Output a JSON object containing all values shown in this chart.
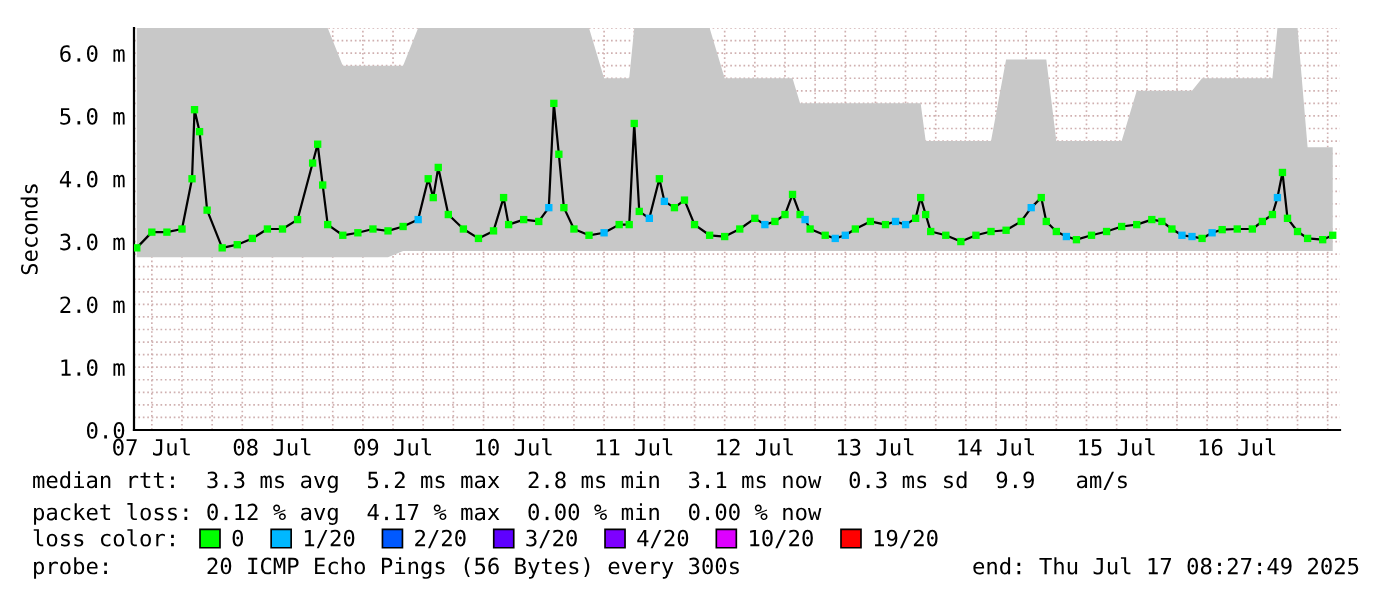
{
  "chart_data": {
    "type": "line",
    "ylabel": "Seconds",
    "legend_title": "loss color:",
    "legend": "bottom",
    "grid": true,
    "xlim": [
      "2025-07-07T08:27",
      "2025-07-17T08:27"
    ],
    "ylim": [
      0,
      6.4
    ],
    "x": [
      "2025-07-07T09:00",
      "2025-07-07T12:00",
      "2025-07-07T15:00",
      "2025-07-07T18:00",
      "2025-07-07T20:00",
      "2025-07-07T20:30",
      "2025-07-07T21:30",
      "2025-07-07T23:00",
      "2025-07-08T02:00",
      "2025-07-08T05:00",
      "2025-07-08T08:00",
      "2025-07-08T11:00",
      "2025-07-08T14:00",
      "2025-07-08T17:00",
      "2025-07-08T20:00",
      "2025-07-08T21:00",
      "2025-07-08T22:00",
      "2025-07-08T23:00",
      "2025-07-09T02:00",
      "2025-07-09T05:00",
      "2025-07-09T08:00",
      "2025-07-09T11:00",
      "2025-07-09T14:00",
      "2025-07-09T17:00",
      "2025-07-09T19:00",
      "2025-07-09T20:00",
      "2025-07-09T21:00",
      "2025-07-09T23:00",
      "2025-07-10T02:00",
      "2025-07-10T05:00",
      "2025-07-10T08:00",
      "2025-07-10T10:00",
      "2025-07-10T11:00",
      "2025-07-10T14:00",
      "2025-07-10T17:00",
      "2025-07-10T19:00",
      "2025-07-10T20:00",
      "2025-07-10T21:00",
      "2025-07-10T22:00",
      "2025-07-11T00:00",
      "2025-07-11T03:00",
      "2025-07-11T06:00",
      "2025-07-11T09:00",
      "2025-07-11T11:00",
      "2025-07-11T12:00",
      "2025-07-11T13:00",
      "2025-07-11T15:00",
      "2025-07-11T17:00",
      "2025-07-11T18:00",
      "2025-07-11T20:00",
      "2025-07-11T22:00",
      "2025-07-12T00:00",
      "2025-07-12T03:00",
      "2025-07-12T06:00",
      "2025-07-12T09:00",
      "2025-07-12T12:00",
      "2025-07-12T14:00",
      "2025-07-12T16:00",
      "2025-07-12T18:00",
      "2025-07-12T19:30",
      "2025-07-12T21:00",
      "2025-07-12T22:00",
      "2025-07-12T23:00",
      "2025-07-13T02:00",
      "2025-07-13T04:00",
      "2025-07-13T06:00",
      "2025-07-13T08:00",
      "2025-07-13T11:00",
      "2025-07-13T14:00",
      "2025-07-13T16:00",
      "2025-07-13T18:00",
      "2025-07-13T20:00",
      "2025-07-13T21:00",
      "2025-07-13T22:00",
      "2025-07-13T23:00",
      "2025-07-14T02:00",
      "2025-07-14T05:00",
      "2025-07-14T08:00",
      "2025-07-14T11:00",
      "2025-07-14T14:00",
      "2025-07-14T17:00",
      "2025-07-14T19:00",
      "2025-07-14T21:00",
      "2025-07-14T22:00",
      "2025-07-15T00:00",
      "2025-07-15T02:00",
      "2025-07-15T04:00",
      "2025-07-15T07:00",
      "2025-07-15T10:00",
      "2025-07-15T13:00",
      "2025-07-15T16:00",
      "2025-07-15T19:00",
      "2025-07-15T21:00",
      "2025-07-15T23:00",
      "2025-07-16T01:00",
      "2025-07-16T03:00",
      "2025-07-16T05:00",
      "2025-07-16T07:00",
      "2025-07-16T09:00",
      "2025-07-16T12:00",
      "2025-07-16T15:00",
      "2025-07-16T17:00",
      "2025-07-16T19:00",
      "2025-07-16T20:00",
      "2025-07-16T21:00",
      "2025-07-16T22:00",
      "2025-07-17T00:00",
      "2025-07-17T02:00",
      "2025-07-17T05:00",
      "2025-07-17T07:00"
    ],
    "series": [
      {
        "color": "#000000",
        "marker": "none",
        "values": [
          2.9,
          3.15,
          3.15,
          3.2,
          4.0,
          5.1,
          4.75,
          3.5,
          2.9,
          2.95,
          3.05,
          3.2,
          3.2,
          3.35,
          4.25,
          4.55,
          3.9,
          3.27,
          3.1,
          3.14,
          3.2,
          3.17,
          3.24,
          3.35,
          4.0,
          3.7,
          4.18,
          3.43,
          3.2,
          3.05,
          3.17,
          3.7,
          3.27,
          3.35,
          3.32,
          3.54,
          5.2,
          4.39,
          3.54,
          3.2,
          3.1,
          3.14,
          3.27,
          3.27,
          4.88,
          3.48,
          3.37,
          4.0,
          3.64,
          3.54,
          3.66,
          3.27,
          3.1,
          3.08,
          3.2,
          3.37,
          3.27,
          3.32,
          3.43,
          3.75,
          3.43,
          3.35,
          3.2,
          3.1,
          3.05,
          3.1,
          3.2,
          3.32,
          3.27,
          3.32,
          3.27,
          3.37,
          3.7,
          3.43,
          3.16,
          3.1,
          3.0,
          3.1,
          3.16,
          3.18,
          3.32,
          3.54,
          3.7,
          3.32,
          3.16,
          3.08,
          3.03,
          3.1,
          3.16,
          3.24,
          3.27,
          3.35,
          3.32,
          3.2,
          3.1,
          3.08,
          3.05,
          3.14,
          3.19,
          3.2,
          3.2,
          3.32,
          3.43,
          3.7,
          4.1,
          3.37,
          3.16,
          3.05,
          3.03,
          3.1
        ],
        "lower": [
          2.75,
          2.75,
          2.75,
          2.75,
          2.75,
          2.75,
          2.75,
          2.75,
          2.75,
          2.75,
          2.75,
          2.75,
          2.75,
          2.75,
          2.75,
          2.75,
          2.75,
          2.75,
          2.75,
          2.75,
          2.75,
          2.75,
          2.85,
          2.85,
          2.85,
          2.85,
          2.85,
          2.85,
          2.85,
          2.85,
          2.85,
          2.85,
          2.85,
          2.85,
          2.85,
          2.85,
          2.85,
          2.85,
          2.85,
          2.85,
          2.85,
          2.85,
          2.85,
          2.85,
          2.85,
          2.85,
          2.85,
          2.85,
          2.85,
          2.85,
          2.85,
          2.85,
          2.85,
          2.85,
          2.85,
          2.85,
          2.85,
          2.85,
          2.85,
          2.85,
          2.85,
          2.85,
          2.85,
          2.85,
          2.85,
          2.85,
          2.85,
          2.85,
          2.85,
          2.85,
          2.85,
          2.85,
          2.85,
          2.85,
          2.85,
          2.85,
          2.85,
          2.85,
          2.85,
          2.85,
          2.85,
          2.85,
          2.85,
          2.85,
          2.85,
          2.85,
          2.85,
          2.85,
          2.85,
          2.85,
          2.85,
          2.85,
          2.85,
          2.85,
          2.85,
          2.85,
          2.85,
          2.85,
          2.85,
          2.85,
          2.85,
          2.85,
          2.85,
          2.85,
          2.85,
          2.85,
          2.85,
          2.85,
          2.85,
          2.85
        ],
        "upper": [
          6.4,
          6.4,
          6.4,
          6.4,
          6.4,
          6.4,
          6.4,
          6.4,
          6.4,
          6.4,
          6.4,
          6.4,
          6.4,
          6.4,
          6.4,
          6.4,
          6.4,
          6.4,
          5.8,
          5.8,
          5.8,
          5.8,
          5.8,
          6.4,
          6.4,
          6.4,
          6.4,
          6.4,
          6.4,
          6.4,
          6.4,
          6.4,
          6.4,
          6.4,
          6.4,
          6.4,
          6.4,
          6.4,
          6.4,
          6.4,
          6.4,
          5.6,
          5.6,
          5.6,
          6.4,
          6.4,
          6.4,
          6.4,
          6.4,
          6.4,
          6.4,
          6.4,
          6.4,
          5.6,
          5.6,
          5.6,
          5.6,
          5.6,
          5.6,
          5.6,
          5.2,
          5.2,
          5.2,
          5.2,
          5.2,
          5.2,
          5.2,
          5.2,
          5.2,
          5.2,
          5.2,
          5.2,
          5.2,
          4.6,
          4.6,
          4.6,
          4.6,
          4.6,
          4.6,
          5.9,
          5.9,
          5.9,
          5.9,
          5.9,
          4.6,
          4.6,
          4.6,
          4.6,
          4.6,
          4.6,
          5.4,
          5.4,
          5.4,
          5.4,
          5.4,
          5.4,
          5.6,
          5.6,
          5.6,
          5.6,
          5.6,
          5.6,
          5.6,
          6.4,
          6.4,
          6.4,
          6.4,
          4.5,
          4.5,
          4.5
        ]
      },
      {
        "type": "scatter",
        "name": "0",
        "color": "#00ff00",
        "marker": "square",
        "x": [
          "2025-07-07T09:00",
          "2025-07-07T12:00",
          "2025-07-07T15:00",
          "2025-07-07T18:00",
          "2025-07-07T20:00",
          "2025-07-07T20:30",
          "2025-07-07T21:30",
          "2025-07-07T23:00",
          "2025-07-08T02:00",
          "2025-07-08T05:00",
          "2025-07-08T08:00",
          "2025-07-08T11:00",
          "2025-07-08T14:00",
          "2025-07-08T17:00",
          "2025-07-08T20:00",
          "2025-07-08T21:00",
          "2025-07-08T22:00",
          "2025-07-08T23:00",
          "2025-07-09T02:00",
          "2025-07-09T05:00",
          "2025-07-09T08:00",
          "2025-07-09T11:00",
          "2025-07-09T14:00",
          "2025-07-09T19:00",
          "2025-07-09T20:00",
          "2025-07-09T21:00",
          "2025-07-09T23:00",
          "2025-07-10T02:00",
          "2025-07-10T05:00",
          "2025-07-10T08:00",
          "2025-07-10T10:00",
          "2025-07-10T11:00",
          "2025-07-10T14:00",
          "2025-07-10T17:00",
          "2025-07-10T20:00",
          "2025-07-10T21:00",
          "2025-07-10T22:00",
          "2025-07-11T00:00",
          "2025-07-11T03:00",
          "2025-07-11T09:00",
          "2025-07-11T11:00",
          "2025-07-11T12:00",
          "2025-07-11T13:00",
          "2025-07-11T17:00",
          "2025-07-11T20:00",
          "2025-07-11T22:00",
          "2025-07-12T00:00",
          "2025-07-12T03:00",
          "2025-07-12T06:00",
          "2025-07-12T09:00",
          "2025-07-12T12:00",
          "2025-07-12T16:00",
          "2025-07-12T18:00",
          "2025-07-12T19:30",
          "2025-07-12T21:00",
          "2025-07-12T23:00",
          "2025-07-13T02:00",
          "2025-07-13T08:00",
          "2025-07-13T11:00",
          "2025-07-13T14:00",
          "2025-07-13T20:00",
          "2025-07-13T21:00",
          "2025-07-13T22:00",
          "2025-07-13T23:00",
          "2025-07-14T02:00",
          "2025-07-14T05:00",
          "2025-07-14T08:00",
          "2025-07-14T11:00",
          "2025-07-14T14:00",
          "2025-07-14T17:00",
          "2025-07-14T21:00",
          "2025-07-14T22:00",
          "2025-07-15T00:00",
          "2025-07-15T04:00",
          "2025-07-15T07:00",
          "2025-07-15T10:00",
          "2025-07-15T13:00",
          "2025-07-15T16:00",
          "2025-07-15T19:00",
          "2025-07-15T21:00",
          "2025-07-15T23:00",
          "2025-07-16T05:00",
          "2025-07-16T09:00",
          "2025-07-16T12:00",
          "2025-07-16T15:00",
          "2025-07-16T17:00",
          "2025-07-16T19:00",
          "2025-07-16T21:00",
          "2025-07-16T22:00",
          "2025-07-17T00:00",
          "2025-07-17T02:00",
          "2025-07-17T05:00",
          "2025-07-17T07:00"
        ],
        "values": [
          2.9,
          3.15,
          3.15,
          3.2,
          4.0,
          5.1,
          4.75,
          3.5,
          2.9,
          2.95,
          3.05,
          3.2,
          3.2,
          3.35,
          4.25,
          4.55,
          3.9,
          3.27,
          3.1,
          3.14,
          3.2,
          3.17,
          3.24,
          4.0,
          3.7,
          4.18,
          3.43,
          3.2,
          3.05,
          3.17,
          3.7,
          3.27,
          3.35,
          3.32,
          5.2,
          4.39,
          3.54,
          3.2,
          3.1,
          3.27,
          3.27,
          4.88,
          3.48,
          4.0,
          3.54,
          3.66,
          3.27,
          3.1,
          3.08,
          3.2,
          3.37,
          3.32,
          3.43,
          3.75,
          3.43,
          3.2,
          3.1,
          3.2,
          3.32,
          3.27,
          3.37,
          3.7,
          3.43,
          3.16,
          3.1,
          3.0,
          3.1,
          3.16,
          3.18,
          3.32,
          3.7,
          3.32,
          3.16,
          3.03,
          3.1,
          3.16,
          3.24,
          3.27,
          3.35,
          3.32,
          3.2,
          3.05,
          3.19,
          3.2,
          3.2,
          3.32,
          3.43,
          4.1,
          3.37,
          3.16,
          3.05,
          3.03,
          3.1
        ]
      },
      {
        "type": "scatter",
        "name": "1/20",
        "color": "#00b8ff",
        "marker": "square",
        "x": [
          "2025-07-09T17:00",
          "2025-07-10T19:00",
          "2025-07-11T06:00",
          "2025-07-11T15:00",
          "2025-07-11T18:00",
          "2025-07-12T14:00",
          "2025-07-12T22:00",
          "2025-07-13T04:00",
          "2025-07-13T06:00",
          "2025-07-13T16:00",
          "2025-07-13T18:00",
          "2025-07-14T19:00",
          "2025-07-15T02:00",
          "2025-07-16T01:00",
          "2025-07-16T03:00",
          "2025-07-16T07:00",
          "2025-07-16T20:00"
        ],
        "values": [
          3.35,
          3.54,
          3.14,
          3.37,
          3.64,
          3.27,
          3.35,
          3.05,
          3.1,
          3.32,
          3.27,
          3.54,
          3.08,
          3.1,
          3.08,
          3.14,
          3.7
        ]
      },
      {
        "type": "scatter",
        "name": "2/20",
        "color": "#0059ff",
        "marker": "square",
        "values": [
          null,
          null,
          null,
          null,
          null,
          null,
          null,
          null,
          null,
          null,
          null,
          null,
          null,
          null,
          null,
          null,
          null,
          null,
          null,
          null,
          null,
          null,
          null,
          null,
          null,
          null,
          null,
          null,
          null,
          null,
          null,
          null,
          null,
          null,
          null,
          null,
          null,
          null,
          null,
          null,
          null,
          null,
          null,
          null,
          null,
          null,
          null,
          null,
          null,
          null,
          null,
          null,
          null,
          null,
          null,
          null,
          null,
          null,
          null,
          null,
          null,
          null,
          null,
          null,
          null,
          null,
          null,
          null,
          null,
          null,
          null,
          null,
          null,
          null,
          null,
          null,
          null,
          null,
          null,
          null,
          null,
          null,
          null,
          null,
          null,
          null,
          null,
          null,
          null,
          null,
          null,
          null,
          null,
          null,
          null,
          null,
          null,
          null,
          null,
          null,
          null,
          null,
          null,
          null,
          null,
          null,
          null,
          null,
          null,
          null
        ]
      },
      {
        "type": "scatter",
        "name": "3/20",
        "color": "#5e00ff",
        "marker": "square",
        "values": [
          null,
          null,
          null,
          null,
          null,
          null,
          null,
          null,
          null,
          null,
          null,
          null,
          null,
          null,
          null,
          null,
          null,
          null,
          null,
          null,
          null,
          null,
          null,
          null,
          null,
          null,
          null,
          null,
          null,
          null,
          null,
          null,
          null,
          null,
          null,
          null,
          null,
          null,
          null,
          null,
          null,
          null,
          null,
          null,
          null,
          null,
          null,
          null,
          null,
          null,
          null,
          null,
          null,
          null,
          null,
          null,
          null,
          null,
          null,
          null,
          null,
          null,
          null,
          null,
          null,
          null,
          null,
          null,
          null,
          null,
          null,
          null,
          null,
          null,
          null,
          null,
          null,
          null,
          null,
          null,
          null,
          null,
          null,
          null,
          null,
          null,
          null,
          null,
          null,
          null,
          null,
          null,
          null,
          null,
          null,
          null,
          null,
          null,
          null,
          null,
          null,
          null,
          null,
          null,
          null,
          null,
          null,
          null,
          null,
          null
        ]
      },
      {
        "type": "scatter",
        "name": "4/20",
        "color": "#7e00ff",
        "marker": "square",
        "values": [
          null,
          null,
          null,
          null,
          null,
          null,
          null,
          null,
          null,
          null,
          null,
          null,
          null,
          null,
          null,
          null,
          null,
          null,
          null,
          null,
          null,
          null,
          null,
          null,
          null,
          null,
          null,
          null,
          null,
          null,
          null,
          null,
          null,
          null,
          null,
          null,
          null,
          null,
          null,
          null,
          null,
          null,
          null,
          null,
          null,
          null,
          null,
          null,
          null,
          null,
          null,
          null,
          null,
          null,
          null,
          null,
          null,
          null,
          null,
          null,
          null,
          null,
          null,
          null,
          null,
          null,
          null,
          null,
          null,
          null,
          null,
          null,
          null,
          null,
          null,
          null,
          null,
          null,
          null,
          null,
          null,
          null,
          null,
          null,
          null,
          null,
          null,
          null,
          null,
          null,
          null,
          null,
          null,
          null,
          null,
          null,
          null,
          null,
          null,
          null,
          null,
          null,
          null,
          null,
          null,
          null,
          null,
          null,
          null,
          null
        ]
      },
      {
        "type": "scatter",
        "name": "10/20",
        "color": "#dd00ff",
        "marker": "square",
        "values": [
          null,
          null,
          null,
          null,
          null,
          null,
          null,
          null,
          null,
          null,
          null,
          null,
          null,
          null,
          null,
          null,
          null,
          null,
          null,
          null,
          null,
          null,
          null,
          null,
          null,
          null,
          null,
          null,
          null,
          null,
          null,
          null,
          null,
          null,
          null,
          null,
          null,
          null,
          null,
          null,
          null,
          null,
          null,
          null,
          null,
          null,
          null,
          null,
          null,
          null,
          null,
          null,
          null,
          null,
          null,
          null,
          null,
          null,
          null,
          null,
          null,
          null,
          null,
          null,
          null,
          null,
          null,
          null,
          null,
          null,
          null,
          null,
          null,
          null,
          null,
          null,
          null,
          null,
          null,
          null,
          null,
          null,
          null,
          null,
          null,
          null,
          null,
          null,
          null,
          null,
          null,
          null,
          null,
          null,
          null,
          null,
          null,
          null,
          null,
          null,
          null,
          null,
          null,
          null,
          null,
          null,
          null,
          null,
          null,
          null
        ]
      },
      {
        "type": "scatter",
        "name": "19/20",
        "color": "#ff0000",
        "marker": "square",
        "values": [
          null,
          null,
          null,
          null,
          null,
          null,
          null,
          null,
          null,
          null,
          null,
          null,
          null,
          null,
          null,
          null,
          null,
          null,
          null,
          null,
          null,
          null,
          null,
          null,
          null,
          null,
          null,
          null,
          null,
          null,
          null,
          null,
          null,
          null,
          null,
          null,
          null,
          null,
          null,
          null,
          null,
          null,
          null,
          null,
          null,
          null,
          null,
          null,
          null,
          null,
          null,
          null,
          null,
          null,
          null,
          null,
          null,
          null,
          null,
          null,
          null,
          null,
          null,
          null,
          null,
          null,
          null,
          null,
          null,
          null,
          null,
          null,
          null,
          null,
          null,
          null,
          null,
          null,
          null,
          null,
          null,
          null,
          null,
          null,
          null,
          null,
          null,
          null,
          null,
          null,
          null,
          null,
          null,
          null,
          null,
          null,
          null,
          null,
          null,
          null,
          null,
          null,
          null,
          null,
          null,
          null,
          null,
          null,
          null,
          null
        ]
      }
    ],
    "xticks": [
      {
        "value": "2025-07-07T12:00",
        "label": "07 Jul"
      },
      {
        "value": "2025-07-07T18:00",
        "label": null
      },
      {
        "value": "2025-07-08T00:00",
        "label": null
      },
      {
        "value": "2025-07-08T06:00",
        "label": null
      },
      {
        "value": "2025-07-08T12:00",
        "label": "08 Jul"
      },
      {
        "value": "2025-07-08T18:00",
        "label": null
      },
      {
        "value": "2025-07-09T00:00",
        "label": null
      },
      {
        "value": "2025-07-09T06:00",
        "label": null
      },
      {
        "value": "2025-07-09T12:00",
        "label": "09 Jul"
      },
      {
        "value": "2025-07-09T18:00",
        "label": null
      },
      {
        "value": "2025-07-10T00:00",
        "label": null
      },
      {
        "value": "2025-07-10T06:00",
        "label": null
      },
      {
        "value": "2025-07-10T12:00",
        "label": "10 Jul"
      },
      {
        "value": "2025-07-10T18:00",
        "label": null
      },
      {
        "value": "2025-07-11T00:00",
        "label": null
      },
      {
        "value": "2025-07-11T06:00",
        "label": null
      },
      {
        "value": "2025-07-11T12:00",
        "label": "11 Jul"
      },
      {
        "value": "2025-07-11T18:00",
        "label": null
      },
      {
        "value": "2025-07-12T00:00",
        "label": null
      },
      {
        "value": "2025-07-12T06:00",
        "label": null
      },
      {
        "value": "2025-07-12T12:00",
        "label": "12 Jul"
      },
      {
        "value": "2025-07-12T18:00",
        "label": null
      },
      {
        "value": "2025-07-13T00:00",
        "label": null
      },
      {
        "value": "2025-07-13T06:00",
        "label": null
      },
      {
        "value": "2025-07-13T12:00",
        "label": "13 Jul"
      },
      {
        "value": "2025-07-13T18:00",
        "label": null
      },
      {
        "value": "2025-07-14T00:00",
        "label": null
      },
      {
        "value": "2025-07-14T06:00",
        "label": null
      },
      {
        "value": "2025-07-14T12:00",
        "label": "14 Jul"
      },
      {
        "value": "2025-07-14T18:00",
        "label": null
      },
      {
        "value": "2025-07-15T00:00",
        "label": null
      },
      {
        "value": "2025-07-15T06:00",
        "label": null
      },
      {
        "value": "2025-07-15T12:00",
        "label": "15 Jul"
      },
      {
        "value": "2025-07-15T18:00",
        "label": null
      },
      {
        "value": "2025-07-16T00:00",
        "label": null
      },
      {
        "value": "2025-07-16T06:00",
        "label": null
      },
      {
        "value": "2025-07-16T12:00",
        "label": "16 Jul"
      },
      {
        "value": "2025-07-16T18:00",
        "label": null
      },
      {
        "value": "2025-07-17T00:00",
        "label": null
      },
      {
        "value": "2025-07-17T06:00",
        "label": null
      }
    ],
    "yticks": [
      {
        "value": 0,
        "label": "0.0"
      },
      {
        "value": 0.2,
        "label": null
      },
      {
        "value": 0.4,
        "label": null
      },
      {
        "value": 0.6,
        "label": null
      },
      {
        "value": 0.8,
        "label": null
      },
      {
        "value": 1,
        "label": "1.0 m"
      },
      {
        "value": 1.2,
        "label": null
      },
      {
        "value": 1.4,
        "label": null
      },
      {
        "value": 1.6,
        "label": null
      },
      {
        "value": 1.8,
        "label": null
      },
      {
        "value": 2,
        "label": "2.0 m"
      },
      {
        "value": 2.2,
        "label": null
      },
      {
        "value": 2.4,
        "label": null
      },
      {
        "value": 2.6,
        "label": null
      },
      {
        "value": 2.8,
        "label": null
      },
      {
        "value": 3,
        "label": "3.0 m"
      },
      {
        "value": 3.2,
        "label": null
      },
      {
        "value": 3.4,
        "label": null
      },
      {
        "value": 3.6,
        "label": null
      },
      {
        "value": 3.8,
        "label": null
      },
      {
        "value": 4,
        "label": "4.0 m"
      },
      {
        "value": 4.2,
        "label": null
      },
      {
        "value": 4.4,
        "label": null
      },
      {
        "value": 4.6,
        "label": null
      },
      {
        "value": 4.8,
        "label": null
      },
      {
        "value": 5,
        "label": "5.0 m"
      },
      {
        "value": 5.2,
        "label": null
      },
      {
        "value": 5.4,
        "label": null
      },
      {
        "value": 5.6,
        "label": null
      },
      {
        "value": 5.8,
        "label": null
      },
      {
        "value": 6,
        "label": "6.0 m"
      },
      {
        "value": 6.2,
        "label": null
      },
      {
        "value": 6.4,
        "label": null
      }
    ],
    "annotations": [
      "median rtt:  3.3 ms avg  5.2 ms max  2.8 ms min  3.1 ms now  0.3 ms sd  9.9   am/s",
      "packet loss: 0.12 % avg  4.17 % max  0.00 % min  0.00 % now",
      "probe:       20 ICMP Echo Pings (56 Bytes) every 300s",
      "end: Thu Jul 17 08:27:49 2025"
    ]
  }
}
